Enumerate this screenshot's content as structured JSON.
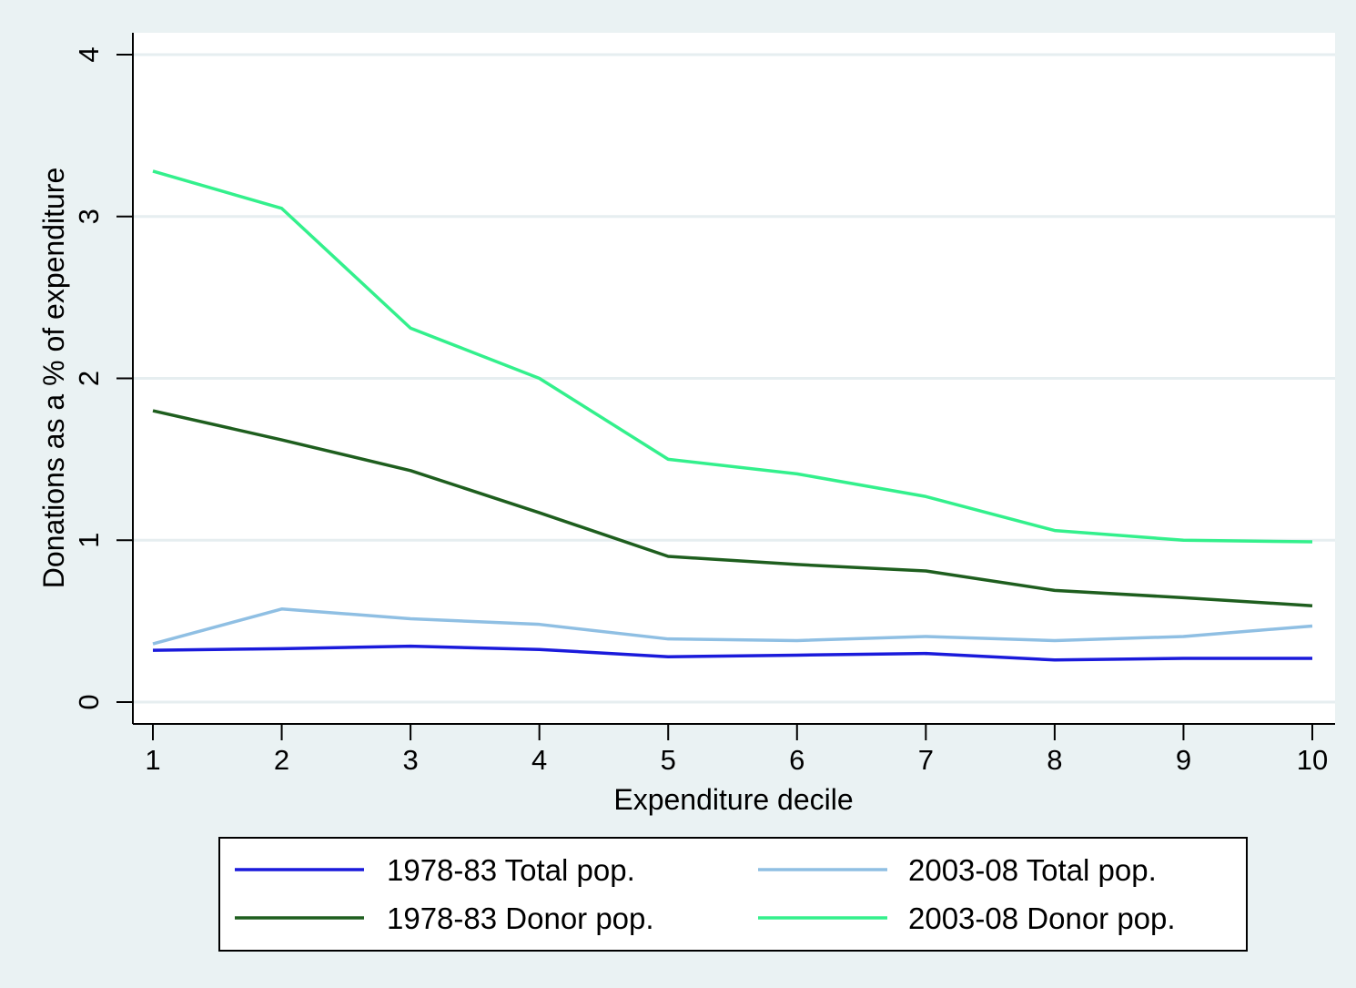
{
  "chart_data": {
    "type": "line",
    "xlabel": "Expenditure decile",
    "ylabel": "Donations as a % of expenditure",
    "x": [
      1,
      2,
      3,
      4,
      5,
      6,
      7,
      8,
      9,
      10
    ],
    "xticks": [
      "1",
      "2",
      "3",
      "4",
      "5",
      "6",
      "7",
      "8",
      "9",
      "10"
    ],
    "yticks": [
      "0",
      "1",
      "2",
      "3",
      "4"
    ],
    "ylim": [
      0,
      4
    ],
    "xlim": [
      1,
      10
    ],
    "grid": "horizontal",
    "legend_position": "bottom",
    "series": [
      {
        "name": "1978-83 Total pop.",
        "color": "#1a1adb",
        "values": [
          0.32,
          0.33,
          0.345,
          0.325,
          0.28,
          0.29,
          0.3,
          0.26,
          0.27,
          0.27
        ]
      },
      {
        "name": "2003-08 Total pop.",
        "color": "#8fbfe3",
        "values": [
          0.36,
          0.575,
          0.515,
          0.48,
          0.39,
          0.38,
          0.405,
          0.38,
          0.405,
          0.47
        ]
      },
      {
        "name": "1978-83 Donor pop.",
        "color": "#1e5e1e",
        "values": [
          1.8,
          1.62,
          1.43,
          1.17,
          0.9,
          0.85,
          0.81,
          0.69,
          0.645,
          0.595
        ]
      },
      {
        "name": "2003-08 Donor pop.",
        "color": "#33f08c",
        "values": [
          3.28,
          3.05,
          2.31,
          2.0,
          1.5,
          1.41,
          1.27,
          1.06,
          1.0,
          0.99
        ]
      }
    ]
  }
}
